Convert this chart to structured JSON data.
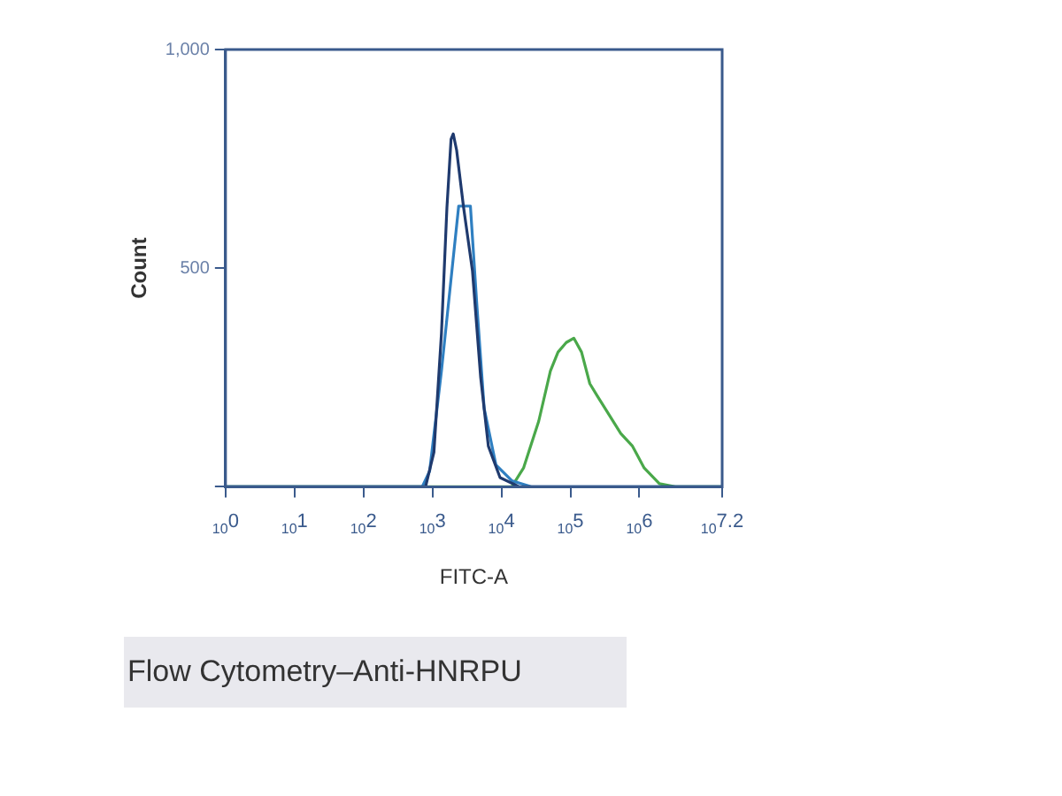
{
  "chart_data": {
    "type": "line",
    "xlabel": "FITC-A",
    "ylabel": "Count",
    "annotations": [
      "Flow Cytometry–Anti-HNRPU"
    ],
    "log": "x",
    "xlim": [
      1,
      15850000
    ],
    "ylim": [
      0,
      1000
    ],
    "xticks": [
      {
        "value": 1,
        "label": "10$^{0}$"
      },
      {
        "value": 10,
        "label": "10$^{1}$"
      },
      {
        "value": 100,
        "label": "10$^{2}$"
      },
      {
        "value": 1000,
        "label": "10$^{3}$"
      },
      {
        "value": 10000,
        "label": "10$^{4}$"
      },
      {
        "value": 100000,
        "label": "10$^{5}$"
      },
      {
        "value": 1000000,
        "label": "10$^{6}$"
      },
      {
        "value": 15850000,
        "label": "10$^{7.2}$"
      }
    ],
    "yticks": [
      {
        "value": 0,
        "label": null
      },
      500,
      {
        "value": 1000,
        "label": "1,000"
      }
    ],
    "grid": false,
    "legend": false,
    "marker": "none",
    "line_style": "solid",
    "series": [
      {
        "color": "#1f3a6e",
        "x": [
          1,
          794,
          1050,
          1350,
          1620,
          1860,
          2000,
          2240,
          2820,
          3800,
          5000,
          6460,
          9550,
          18200,
          15850000
        ],
        "values": [
          0,
          0,
          79,
          351,
          638,
          795,
          807,
          770,
          640,
          494,
          250,
          93,
          21,
          0,
          0
        ]
      },
      {
        "color": "#2f7fc1",
        "x": [
          1,
          710,
          910,
          1350,
          2000,
          2400,
          3550,
          4370,
          5620,
          8320,
          14100,
          26900,
          15850000
        ],
        "values": [
          0,
          0,
          36,
          265,
          523,
          642,
          642,
          423,
          179,
          50,
          14,
          0,
          0
        ]
      },
      {
        "color": "#4aa84a",
        "x": [
          1,
          14100,
          20900,
          34700,
          51300,
          66100,
          87100,
          112000,
          145000,
          191000,
          245000,
          363000,
          537000,
          794000,
          1175000,
          1950000,
          3310000,
          15850000
        ],
        "values": [
          0,
          0,
          43,
          150,
          265,
          308,
          330,
          340,
          308,
          236,
          208,
          165,
          122,
          93,
          43,
          7,
          0,
          0
        ]
      }
    ]
  }
}
